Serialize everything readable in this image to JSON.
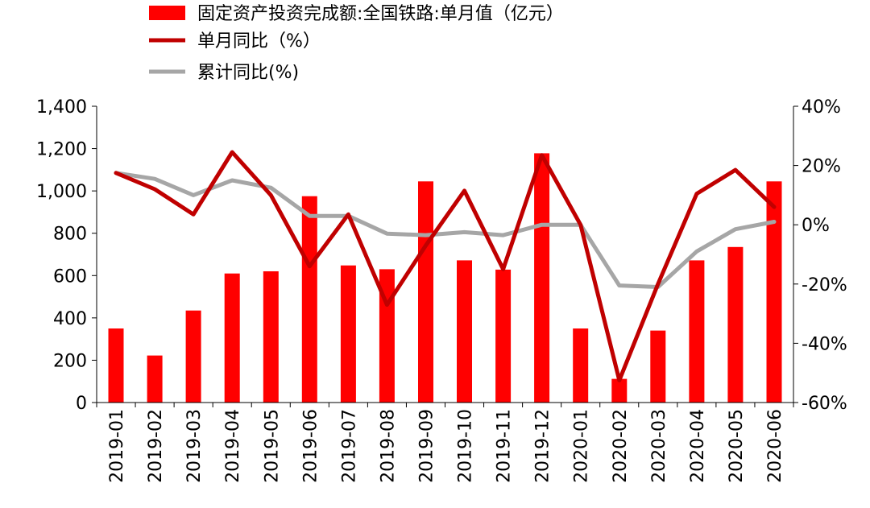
{
  "chart_data": {
    "type": "bar",
    "categories": [
      "2019-01",
      "2019-02",
      "2019-03",
      "2019-04",
      "2019-05",
      "2019-06",
      "2019-07",
      "2019-08",
      "2019-09",
      "2019-10",
      "2019-11",
      "2019-12",
      "2020-01",
      "2020-02",
      "2020-03",
      "2020-04",
      "2020-05",
      "2020-06"
    ],
    "series": [
      {
        "name": "固定资产投资完成额:全国铁路:单月值（亿元）",
        "type": "bar",
        "axis": "left",
        "color": "#ff0000",
        "values": [
          350,
          222,
          435,
          610,
          620,
          975,
          648,
          630,
          1045,
          672,
          628,
          1178,
          350,
          112,
          340,
          672,
          735,
          1045
        ]
      },
      {
        "name": "单月同比（%）",
        "type": "line",
        "axis": "right",
        "color": "#c00000",
        "values": [
          17.5,
          12,
          3.5,
          24.5,
          10,
          -14,
          3.5,
          -27,
          -7,
          11.5,
          -15,
          23.5,
          0,
          -52.5,
          -20,
          10.5,
          18.5,
          6
        ]
      },
      {
        "name": "累计同比(%)",
        "type": "line",
        "axis": "right",
        "color": "#a6a6a6",
        "values": [
          17.5,
          15.5,
          10,
          15,
          12.5,
          3,
          3,
          -3,
          -3.5,
          -2.5,
          -3.5,
          0,
          0,
          -20.5,
          -21,
          -9,
          -1.5,
          1
        ]
      }
    ],
    "ylim_left": [
      0,
      1400
    ],
    "yticks_left": [
      "0",
      "200",
      "400",
      "600",
      "800",
      "1,000",
      "1,200",
      "1,400"
    ],
    "ylim_right": [
      -60,
      40
    ],
    "yticks_right": [
      "-60%",
      "-40%",
      "-20%",
      "0%",
      "20%",
      "40%"
    ],
    "grid": false,
    "legend_position": "top-left"
  }
}
